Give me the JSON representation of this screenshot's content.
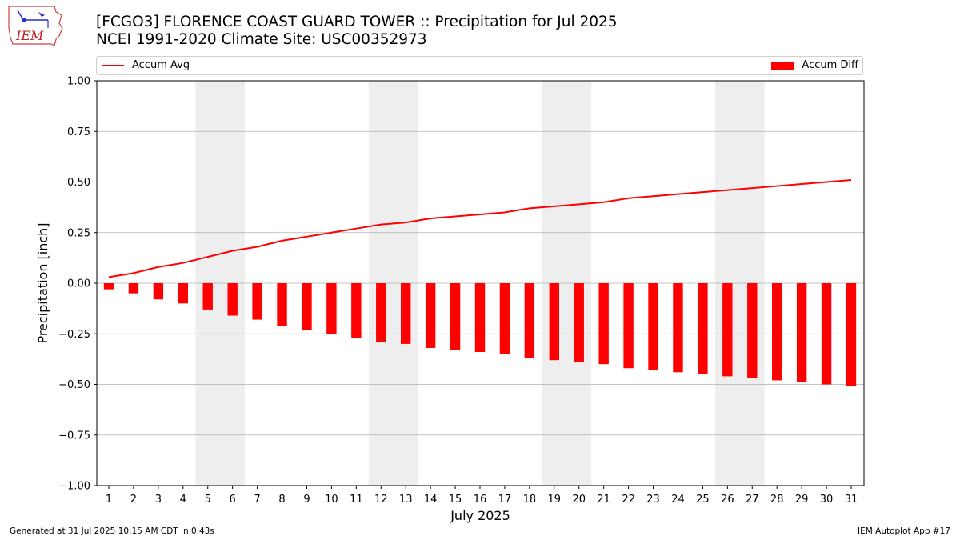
{
  "header": {
    "title_line1": "[FCGO3] FLORENCE COAST GUARD TOWER :: Precipitation for Jul 2025",
    "title_line2": "NCEI 1991-2020 Climate Site: USC00352973"
  },
  "logo": {
    "text": "IEM",
    "icon": "iowa-state-logo-icon"
  },
  "footer": {
    "left": "Generated at 31 Jul 2025 10:15 AM CDT in 0.43s",
    "right": "IEM Autoplot App #17"
  },
  "colors": {
    "series": "#ff0000",
    "weekend_shade": "#eeeeee",
    "grid": "#b0b0b0"
  },
  "chart_data": {
    "type": "bar",
    "xlabel": "July 2025",
    "ylabel": "Precipitation [inch]",
    "ylim": [
      -1.0,
      1.0
    ],
    "yticks": [
      1.0,
      0.75,
      0.5,
      0.25,
      0.0,
      -0.25,
      -0.5,
      -0.75,
      -1.0
    ],
    "ytick_labels": [
      "1.00",
      "0.75",
      "0.50",
      "0.25",
      "0.00",
      "−0.25",
      "−0.50",
      "−0.75",
      "−1.00"
    ],
    "categories": [
      "1",
      "2",
      "3",
      "4",
      "5",
      "6",
      "7",
      "8",
      "9",
      "10",
      "11",
      "12",
      "13",
      "14",
      "15",
      "16",
      "17",
      "18",
      "19",
      "20",
      "21",
      "22",
      "23",
      "24",
      "25",
      "26",
      "27",
      "28",
      "29",
      "30",
      "31"
    ],
    "grid": "horizontal",
    "legend_placement": "top",
    "shaded_days": [
      [
        5,
        6
      ],
      [
        12,
        13
      ],
      [
        19,
        20
      ],
      [
        26,
        27
      ]
    ],
    "series": [
      {
        "name": "Accum Avg",
        "kind": "line",
        "values": [
          0.03,
          0.05,
          0.08,
          0.1,
          0.13,
          0.16,
          0.18,
          0.21,
          0.23,
          0.25,
          0.27,
          0.29,
          0.3,
          0.32,
          0.33,
          0.34,
          0.35,
          0.37,
          0.38,
          0.39,
          0.4,
          0.42,
          0.43,
          0.44,
          0.45,
          0.46,
          0.47,
          0.48,
          0.49,
          0.5,
          0.51
        ]
      },
      {
        "name": "Accum Diff",
        "kind": "bar",
        "values": [
          -0.03,
          -0.05,
          -0.08,
          -0.1,
          -0.13,
          -0.16,
          -0.18,
          -0.21,
          -0.23,
          -0.25,
          -0.27,
          -0.29,
          -0.3,
          -0.32,
          -0.33,
          -0.34,
          -0.35,
          -0.37,
          -0.38,
          -0.39,
          -0.4,
          -0.42,
          -0.43,
          -0.44,
          -0.45,
          -0.46,
          -0.47,
          -0.48,
          -0.49,
          -0.5,
          -0.51
        ]
      }
    ]
  }
}
